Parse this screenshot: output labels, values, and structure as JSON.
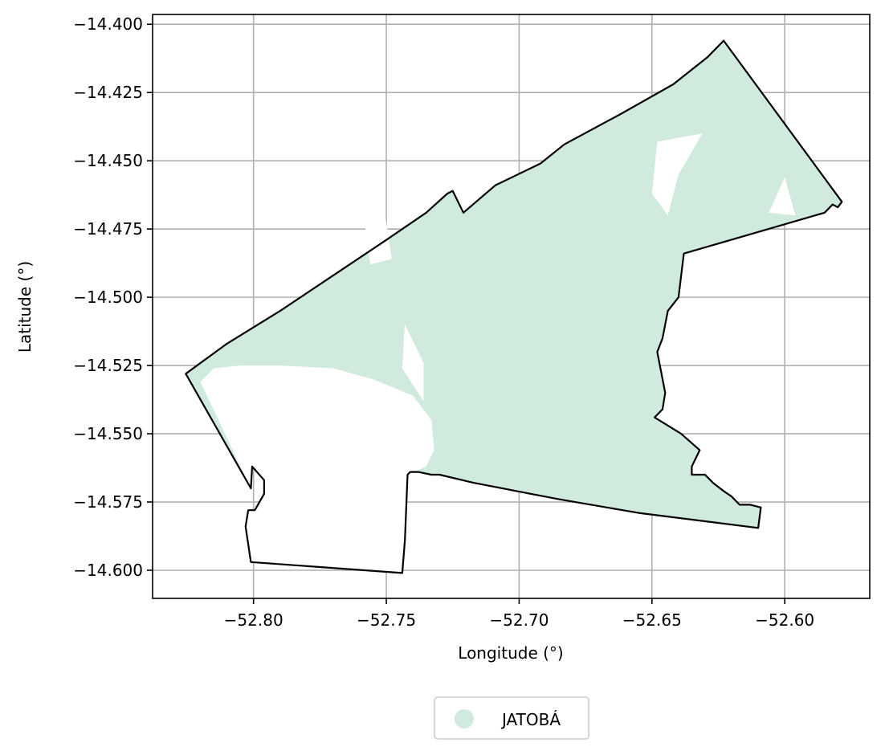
{
  "chart_data": {
    "type": "map",
    "xlabel": "Longitude (°)",
    "ylabel": "Latitude (°)",
    "xlim": [
      -52.838,
      -52.568
    ],
    "ylim": [
      -14.6103,
      -14.3964
    ],
    "x_ticks": [
      -52.8,
      -52.75,
      -52.7,
      -52.65,
      -52.6
    ],
    "x_tick_labels": [
      "−52.80",
      "−52.75",
      "−52.70",
      "−52.65",
      "−52.60"
    ],
    "y_ticks": [
      -14.4,
      -14.425,
      -14.45,
      -14.475,
      -14.5,
      -14.525,
      -14.55,
      -14.575,
      -14.6
    ],
    "y_tick_labels": [
      "−14.400",
      "−14.425",
      "−14.450",
      "−14.475",
      "−14.500",
      "−14.525",
      "−14.550",
      "−14.575",
      "−14.600"
    ],
    "grid": true,
    "legend_position": "bottom-center",
    "legend": [
      {
        "label": "JATOBÁ",
        "color": "#d0ebdd"
      }
    ],
    "fill_color": "#d0ebdd",
    "boundary_color": "#000000",
    "boundary": [
      [
        -52.8255,
        -14.528
      ],
      [
        -52.81,
        -14.517
      ],
      [
        -52.79,
        -14.505
      ],
      [
        -52.77,
        -14.492
      ],
      [
        -52.75,
        -14.479
      ],
      [
        -52.735,
        -14.469
      ],
      [
        -52.727,
        -14.462
      ],
      [
        -52.725,
        -14.461
      ],
      [
        -52.721,
        -14.469
      ],
      [
        -52.709,
        -14.459
      ],
      [
        -52.692,
        -14.451
      ],
      [
        -52.683,
        -14.444
      ],
      [
        -52.662,
        -14.433
      ],
      [
        -52.642,
        -14.422
      ],
      [
        -52.629,
        -14.412
      ],
      [
        -52.623,
        -14.406
      ],
      [
        -52.5785,
        -14.465
      ],
      [
        -52.58,
        -14.467
      ],
      [
        -52.582,
        -14.466
      ],
      [
        -52.583,
        -14.467
      ],
      [
        -52.585,
        -14.469
      ],
      [
        -52.638,
        -14.484
      ],
      [
        -52.64,
        -14.5
      ],
      [
        -52.644,
        -14.505
      ],
      [
        -52.646,
        -14.515
      ],
      [
        -52.648,
        -14.52
      ],
      [
        -52.645,
        -14.535
      ],
      [
        -52.646,
        -14.541
      ],
      [
        -52.649,
        -14.544
      ],
      [
        -52.639,
        -14.55
      ],
      [
        -52.632,
        -14.556
      ],
      [
        -52.635,
        -14.562
      ],
      [
        -52.635,
        -14.565
      ],
      [
        -52.63,
        -14.565
      ],
      [
        -52.627,
        -14.568
      ],
      [
        -52.623,
        -14.571
      ],
      [
        -52.62,
        -14.573
      ],
      [
        -52.617,
        -14.576
      ],
      [
        -52.613,
        -14.576
      ],
      [
        -52.609,
        -14.577
      ],
      [
        -52.61,
        -14.5845
      ],
      [
        -52.655,
        -14.579
      ],
      [
        -52.685,
        -14.574
      ],
      [
        -52.717,
        -14.568
      ],
      [
        -52.73,
        -14.565
      ],
      [
        -52.733,
        -14.565
      ],
      [
        -52.738,
        -14.564
      ],
      [
        -52.741,
        -14.564
      ],
      [
        -52.742,
        -14.565
      ],
      [
        -52.743,
        -14.589
      ],
      [
        -52.744,
        -14.601
      ],
      [
        -52.801,
        -14.597
      ],
      [
        -52.803,
        -14.584
      ],
      [
        -52.802,
        -14.578
      ],
      [
        -52.7995,
        -14.578
      ],
      [
        -52.796,
        -14.572
      ],
      [
        -52.796,
        -14.567
      ],
      [
        -52.8005,
        -14.562
      ],
      [
        -52.801,
        -14.57
      ],
      [
        -52.8255,
        -14.528
      ]
    ],
    "unfilled_area": [
      [
        -52.82,
        -14.531
      ],
      [
        -52.815,
        -14.526
      ],
      [
        -52.805,
        -14.525
      ],
      [
        -52.79,
        -14.525
      ],
      [
        -52.77,
        -14.526
      ],
      [
        -52.755,
        -14.53
      ],
      [
        -52.74,
        -14.536
      ],
      [
        -52.733,
        -14.545
      ],
      [
        -52.732,
        -14.556
      ],
      [
        -52.735,
        -14.562
      ],
      [
        -52.742,
        -14.565
      ],
      [
        -52.743,
        -14.589
      ],
      [
        -52.744,
        -14.601
      ],
      [
        -52.801,
        -14.597
      ],
      [
        -52.803,
        -14.584
      ],
      [
        -52.802,
        -14.578
      ],
      [
        -52.7995,
        -14.578
      ],
      [
        -52.796,
        -14.572
      ],
      [
        -52.796,
        -14.567
      ],
      [
        -52.8005,
        -14.562
      ],
      [
        -52.801,
        -14.57
      ],
      [
        -52.82,
        -14.531
      ]
    ],
    "holes": [
      [
        [
          -52.753,
          -14.453
        ],
        [
          -52.748,
          -14.486
        ],
        [
          -52.756,
          -14.488
        ],
        [
          -52.76,
          -14.46
        ]
      ],
      [
        [
          -52.631,
          -14.44
        ],
        [
          -52.64,
          -14.455
        ],
        [
          -52.644,
          -14.47
        ],
        [
          -52.65,
          -14.462
        ],
        [
          -52.648,
          -14.443
        ]
      ],
      [
        [
          -52.6,
          -14.456
        ],
        [
          -52.596,
          -14.47
        ],
        [
          -52.606,
          -14.469
        ]
      ],
      [
        [
          -52.743,
          -14.51
        ],
        [
          -52.736,
          -14.524
        ],
        [
          -52.736,
          -14.538
        ],
        [
          -52.744,
          -14.526
        ],
        [
          -52.743,
          -14.509
        ]
      ],
      [
        [
          -52.801,
          -14.545
        ],
        [
          -52.804,
          -14.554
        ],
        [
          -52.796,
          -14.557
        ]
      ],
      [
        [
          -52.766,
          -14.545
        ],
        [
          -52.762,
          -14.556
        ],
        [
          -52.754,
          -14.555
        ]
      ]
    ]
  }
}
